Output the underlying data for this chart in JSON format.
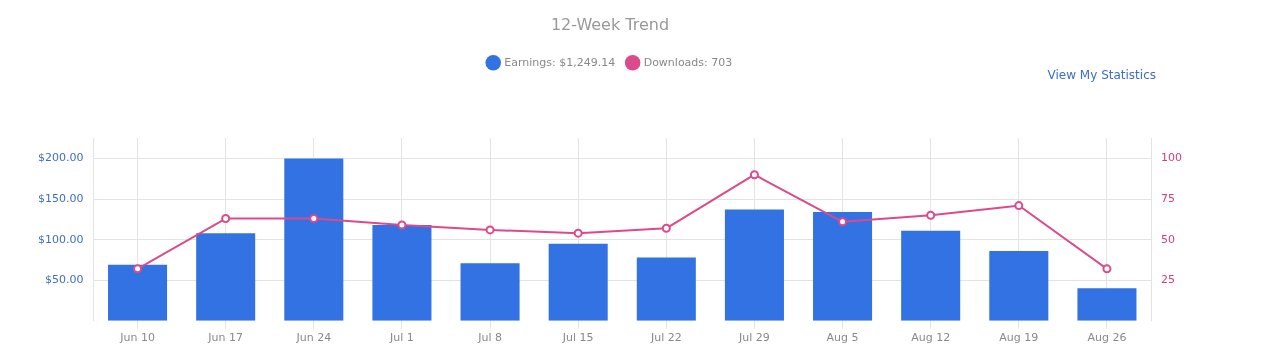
{
  "chart_data": {
    "type": "bar",
    "title": "12-Week Trend",
    "annotations": [
      "View My Statistics"
    ],
    "categories": [
      "Jun 10",
      "Jun 17",
      "Jun 24",
      "Jul 1",
      "Jul 8",
      "Jul 15",
      "Jul 22",
      "Jul 29",
      "Aug 5",
      "Aug 12",
      "Aug 19",
      "Aug 26"
    ],
    "series": [
      {
        "name": "Earnings: $1,249.14",
        "color": "#3272e3",
        "values": [
          69,
          108,
          200,
          118,
          71,
          95,
          78,
          137,
          134,
          111,
          86,
          40
        ]
      },
      {
        "name": "Downloads: 703",
        "type": "line",
        "axis": "y2",
        "color": "#dc4a8c",
        "marker": "circle",
        "values": [
          32,
          63,
          63,
          59,
          56,
          54,
          57,
          90,
          61,
          65,
          71,
          32
        ]
      }
    ],
    "ylim": [
      0,
      225
    ],
    "yticks": [
      {
        "value": 50,
        "label": "$50.00"
      },
      {
        "value": 100,
        "label": "$100.00"
      },
      {
        "value": 150,
        "label": "$150.00"
      },
      {
        "value": 200,
        "label": "$200.00"
      }
    ],
    "y2lim": [
      0,
      112.5
    ],
    "y2ticks": [
      25,
      50,
      75,
      100
    ],
    "grid": true,
    "legend": "top"
  }
}
